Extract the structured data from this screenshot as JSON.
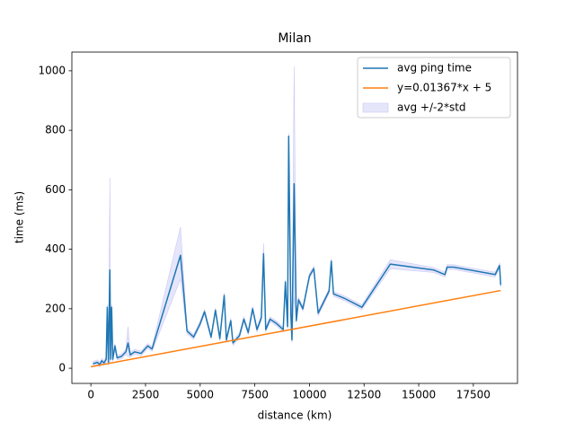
{
  "chart_data": {
    "type": "line",
    "title": "Milan",
    "x_label": "distance (km)",
    "y_label": "time (ms)",
    "xlim": [
      -870,
      19520
    ],
    "ylim": [
      -51,
      1063
    ],
    "xticks": [
      0,
      2500,
      5000,
      7500,
      10000,
      12500,
      15000,
      17500
    ],
    "yticks": [
      0,
      200,
      400,
      600,
      800,
      1000
    ],
    "legend": "upper right",
    "x": [
      100,
      300,
      400,
      500,
      600,
      700,
      750,
      800,
      870,
      900,
      950,
      1000,
      1100,
      1200,
      1400,
      1600,
      1700,
      1800,
      2000,
      2300,
      2600,
      2800,
      4100,
      4400,
      4700,
      5000,
      5200,
      5500,
      5700,
      5900,
      6100,
      6200,
      6400,
      6500,
      6800,
      7000,
      7200,
      7400,
      7600,
      7800,
      7900,
      8000,
      8200,
      8500,
      8800,
      8900,
      9000,
      9050,
      9150,
      9200,
      9300,
      9400,
      9500,
      9700,
      10000,
      10200,
      10400,
      10900,
      11000,
      11100,
      11600,
      12400,
      13700,
      15700,
      16200,
      16300,
      16600,
      18500,
      18700,
      18750
    ],
    "series": [
      {
        "name": "avg ping time",
        "color": "#1f77b4",
        "values": [
          15,
          20,
          12,
          25,
          18,
          30,
          205,
          20,
          330,
          30,
          205,
          30,
          75,
          35,
          40,
          55,
          85,
          45,
          55,
          50,
          75,
          65,
          380,
          125,
          105,
          150,
          190,
          105,
          195,
          100,
          245,
          95,
          160,
          85,
          110,
          165,
          120,
          200,
          130,
          170,
          385,
          130,
          165,
          150,
          130,
          290,
          140,
          780,
          180,
          95,
          620,
          160,
          230,
          200,
          310,
          335,
          185,
          260,
          360,
          250,
          235,
          205,
          350,
          330,
          315,
          340,
          340,
          315,
          345,
          280
        ]
      },
      {
        "name": "y=0.01367*x + 5",
        "color": "#ff7f0e",
        "x": [
          0,
          18750
        ],
        "values": [
          5,
          261.31
        ]
      },
      {
        "name": "avg +/-2*std",
        "color": "#e6e6fb",
        "edge": "#c8c8f5",
        "lower": [
          7,
          12,
          4,
          17,
          10,
          22,
          195,
          12,
          20,
          22,
          195,
          22,
          67,
          27,
          32,
          47,
          40,
          37,
          47,
          42,
          67,
          57,
          300,
          117,
          97,
          142,
          182,
          97,
          187,
          92,
          237,
          87,
          152,
          77,
          102,
          157,
          112,
          192,
          122,
          162,
          350,
          122,
          157,
          142,
          122,
          282,
          132,
          760,
          172,
          87,
          240,
          152,
          222,
          192,
          302,
          327,
          177,
          252,
          352,
          242,
          227,
          197,
          335,
          322,
          307,
          332,
          332,
          307,
          337,
          272
        ],
        "upper": [
          23,
          28,
          20,
          33,
          26,
          38,
          215,
          28,
          640,
          38,
          215,
          38,
          83,
          43,
          48,
          63,
          140,
          53,
          63,
          58,
          83,
          73,
          475,
          133,
          113,
          158,
          198,
          113,
          203,
          108,
          253,
          103,
          168,
          93,
          118,
          173,
          128,
          208,
          138,
          178,
          420,
          138,
          173,
          158,
          138,
          298,
          148,
          790,
          188,
          103,
          1015,
          168,
          238,
          208,
          318,
          343,
          193,
          268,
          368,
          258,
          243,
          213,
          365,
          338,
          323,
          348,
          348,
          323,
          353,
          288
        ]
      }
    ]
  }
}
